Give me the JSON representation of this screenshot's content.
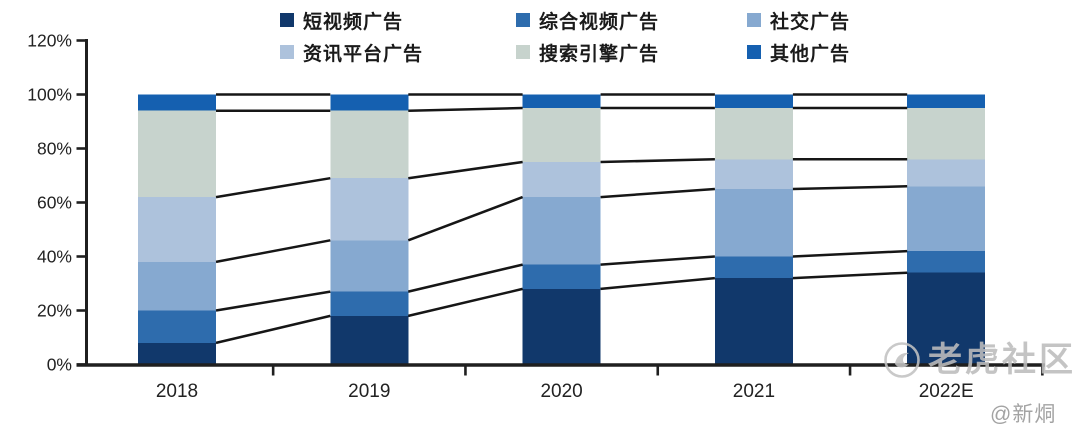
{
  "watermark": {
    "brand": "老虎社区",
    "handle": "@新烔",
    "logo_icon": "tiger-circle-icon",
    "color": "#bdbdbd"
  },
  "chart_data": {
    "type": "bar",
    "variant": "stacked-100-percent-column",
    "title": "",
    "xlabel": "",
    "ylabel": "",
    "unit": "%",
    "grid": false,
    "legend_position": "top",
    "connector_lines": true,
    "categories": [
      "2018",
      "2019",
      "2020",
      "2021",
      "2022E"
    ],
    "series": [
      {
        "name": "短视频广告",
        "color": "#11386b",
        "values": [
          8,
          18,
          28,
          32,
          34
        ]
      },
      {
        "name": "综合视频广告",
        "color": "#2e6cad",
        "values": [
          12,
          9,
          9,
          8,
          8
        ]
      },
      {
        "name": "社交广告",
        "color": "#86a9d0",
        "values": [
          18,
          19,
          25,
          25,
          24
        ]
      },
      {
        "name": "资讯平台广告",
        "color": "#adc2dc",
        "values": [
          24,
          23,
          13,
          11,
          10
        ]
      },
      {
        "name": "搜索引擎广告",
        "color": "#c7d3cd",
        "values": [
          32,
          25,
          20,
          19,
          19
        ]
      },
      {
        "name": "其他广告",
        "color": "#1560b0",
        "values": [
          6,
          6,
          5,
          5,
          5
        ]
      }
    ],
    "y_axis": {
      "min": 0,
      "max": 120,
      "step": 20,
      "tick_labels": [
        "0%",
        "20%",
        "40%",
        "60%",
        "80%",
        "100%",
        "120%"
      ]
    },
    "axis_color": "#1f1f1f",
    "connector_color": "#161616"
  }
}
